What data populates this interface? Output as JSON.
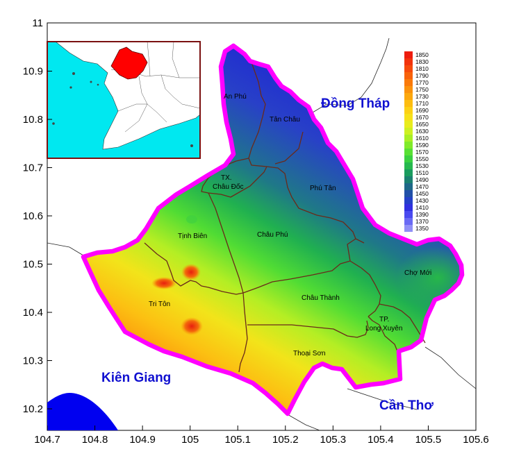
{
  "axes": {
    "x_ticks": [
      "104.7",
      "104.8",
      "104.9",
      "105",
      "105.1",
      "105.2",
      "105.3",
      "105.4",
      "105.5",
      "105.6"
    ],
    "y_ticks": [
      "11",
      "10.9",
      "10.8",
      "10.7",
      "10.6",
      "10.5",
      "10.4",
      "10.3",
      "10.2"
    ]
  },
  "regions": {
    "dong_thap": "Đồng Tháp",
    "kien_giang": "Kiên Giang",
    "can_tho": "Cần Thơ"
  },
  "districts": {
    "an_phu": "An Phú",
    "tan_chau": "Tân Châu",
    "tx": "TX.",
    "chau_doc": "Châu Đốc",
    "phu_tan": "Phú Tân",
    "tinh_bien": "Tịnh Biên",
    "chau_phu": "Châu Phú",
    "cho_moi": "Chợ Mới",
    "tri_ton": "Tri Tôn",
    "chau_thanh": "Châu Thành",
    "tp": "TP.",
    "long_xuyen": "Long Xuyên",
    "thoai_son": "Thoại Sơn"
  },
  "colorbar": {
    "labels": [
      "1850",
      "1830",
      "1810",
      "1790",
      "1770",
      "1750",
      "1730",
      "1710",
      "1690",
      "1670",
      "1650",
      "1630",
      "1610",
      "1590",
      "1570",
      "1550",
      "1530",
      "1510",
      "1490",
      "1470",
      "1450",
      "1430",
      "1410",
      "1390",
      "1370",
      "1350"
    ],
    "colors": [
      "#ee1d0e",
      "#f2330c",
      "#f64a0b",
      "#f8620a",
      "#fa7a0a",
      "#fb920c",
      "#fca80e",
      "#fdbd10",
      "#fcd115",
      "#f6e11a",
      "#e8ec1e",
      "#cdf022",
      "#a9ef25",
      "#80ea2a",
      "#58e034",
      "#3ad040",
      "#26b84e",
      "#1a9c5e",
      "#1a8070",
      "#1e6888",
      "#2150a8",
      "#2440c8",
      "#3030e0",
      "#4a4af0",
      "#6a6af4",
      "#9090f6"
    ]
  },
  "colors": {
    "boundary": "#ff00ff",
    "district_lines": "#6a2a1a",
    "sea": "#00e5ee",
    "highlight": "#ff0000"
  }
}
